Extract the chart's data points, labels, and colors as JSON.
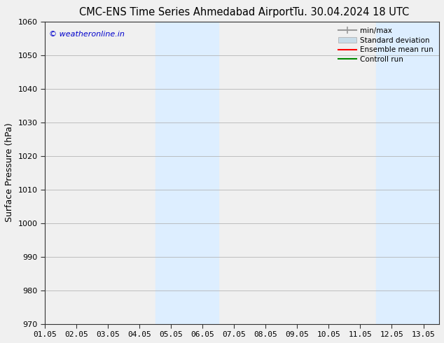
{
  "title_left": "CMC-ENS Time Series Ahmedabad Airport",
  "title_right": "Tu. 30.04.2024 18 UTC",
  "ylabel": "Surface Pressure (hPa)",
  "ylim": [
    970,
    1060
  ],
  "yticks": [
    970,
    980,
    990,
    1000,
    1010,
    1020,
    1030,
    1040,
    1050,
    1060
  ],
  "xlim": [
    0.0,
    12.5
  ],
  "xtick_labels": [
    "01.05",
    "02.05",
    "03.05",
    "04.05",
    "05.05",
    "06.05",
    "07.05",
    "08.05",
    "09.05",
    "10.05",
    "11.05",
    "12.05",
    "13.05"
  ],
  "xtick_positions": [
    0,
    1,
    2,
    3,
    4,
    5,
    6,
    7,
    8,
    9,
    10,
    11,
    12
  ],
  "shaded_bands": [
    {
      "x_start": 3.5,
      "x_end": 5.5,
      "color": "#ddeeff"
    },
    {
      "x_start": 10.5,
      "x_end": 12.5,
      "color": "#ddeeff"
    }
  ],
  "watermark_text": "© weatheronline.in",
  "watermark_color": "#0000cc",
  "bg_color": "#f0f0f0",
  "plot_bg_color": "#f0f0f0",
  "grid_color": "#aaaaaa",
  "title_fontsize": 10.5,
  "tick_fontsize": 8,
  "ylabel_fontsize": 9,
  "legend_labels": [
    "min/max",
    "Standard deviation",
    "Ensemble mean run",
    "Controll run"
  ],
  "legend_colors": [
    "#999999",
    "#c8dce8",
    "#ff0000",
    "#008800"
  ],
  "legend_lw": [
    1.5,
    8,
    1.5,
    1.5
  ]
}
